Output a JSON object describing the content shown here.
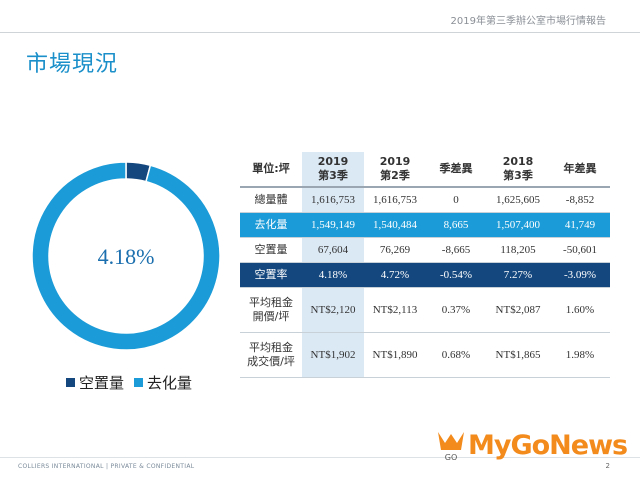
{
  "header": {
    "title": "2019年第三季辦公室市場行情報告"
  },
  "page_title": "市場現況",
  "donut": {
    "label": "4.18%"
  },
  "legend": [
    {
      "label": "空置量",
      "color": "#14477e"
    },
    {
      "label": "去化量",
      "color": "#1b9bd7"
    }
  ],
  "table": {
    "headers": [
      [
        "單位:坪"
      ],
      [
        "2019",
        "第3季"
      ],
      [
        "2019",
        "第2季"
      ],
      [
        "季差異"
      ],
      [
        "2018",
        "第3季"
      ],
      [
        "年差異"
      ]
    ],
    "rows": [
      {
        "label": [
          "總量體"
        ],
        "style": "light",
        "cells": [
          "1,616,753",
          "1,616,753",
          "0",
          "1,625,605",
          "-8,852"
        ]
      },
      {
        "label": [
          "去化量"
        ],
        "style": "cyan",
        "cells": [
          "1,549,149",
          "1,540,484",
          "8,665",
          "1,507,400",
          "41,749"
        ]
      },
      {
        "label": [
          "空置量"
        ],
        "style": "light",
        "cells": [
          "67,604",
          "76,269",
          "-8,665",
          "118,205",
          "-50,601"
        ]
      },
      {
        "label": [
          "空置率"
        ],
        "style": "navy",
        "cells": [
          "4.18%",
          "4.72%",
          "-0.54%",
          "7.27%",
          "-3.09%"
        ]
      },
      {
        "label": [
          "平均租金",
          "開價/坪"
        ],
        "style": "tall",
        "cells": [
          "NT$2,120",
          "NT$2,113",
          "0.37%",
          "NT$2,087",
          "1.60%"
        ]
      },
      {
        "label": [
          "平均租金",
          "成交價/坪"
        ],
        "style": "tall",
        "cells": [
          "NT$1,902",
          "NT$1,890",
          "0.68%",
          "NT$1,865",
          "1.98%"
        ]
      }
    ]
  },
  "chart_data": {
    "type": "pie",
    "labels": [
      "空置量",
      "去化量"
    ],
    "values": [
      67604,
      1549149
    ],
    "colors": [
      "#14477e",
      "#1b9bd7"
    ],
    "center_label": "4.18%"
  },
  "footer": {
    "company": "COLLIERS INTERNATIONAL",
    "tagline": "PRIVATE & CONFIDENTIAL",
    "page": "2"
  },
  "logo": {
    "text": "MyGoNews",
    "emblem": "GO"
  }
}
